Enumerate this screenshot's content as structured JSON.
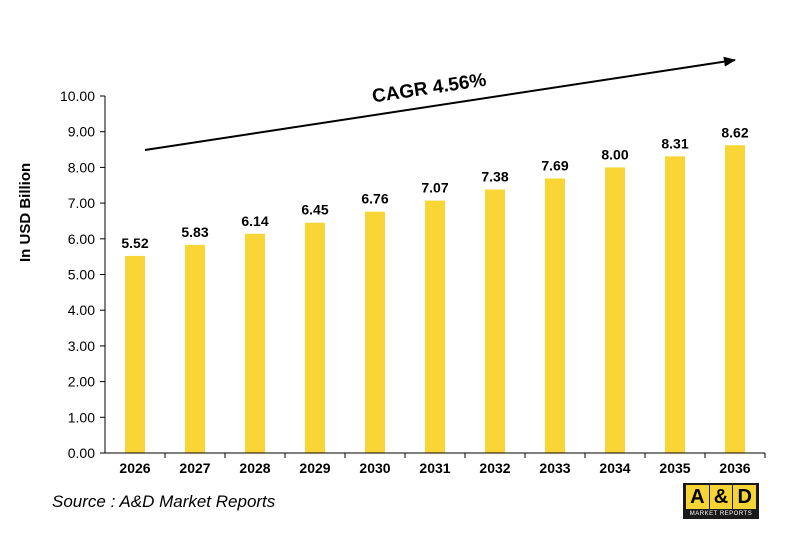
{
  "chart_data": {
    "type": "bar",
    "categories": [
      "2026",
      "2027",
      "2028",
      "2029",
      "2030",
      "2031",
      "2032",
      "2033",
      "2034",
      "2035",
      "2036"
    ],
    "values": [
      5.52,
      5.83,
      6.14,
      6.45,
      6.76,
      7.07,
      7.38,
      7.69,
      8.0,
      8.31,
      8.62
    ],
    "value_labels": [
      "5.52",
      "5.83",
      "6.14",
      "6.45",
      "6.76",
      "7.07",
      "7.38",
      "7.69",
      "8.00",
      "8.31",
      "8.62"
    ],
    "ylabel": "In USD Billion",
    "ylim": [
      0,
      10
    ],
    "yticks": [
      "0.00",
      "1.00",
      "2.00",
      "3.00",
      "4.00",
      "5.00",
      "6.00",
      "7.00",
      "8.00",
      "9.00",
      "10.00"
    ],
    "grid": false,
    "bar_color": "#f9d535",
    "annotation": "CAGR 4.56%"
  },
  "source": "Source : A&D Market Reports",
  "logo": {
    "letters": [
      "A",
      "&",
      "D"
    ],
    "subtitle": "MARKET REPORTS",
    "accent_color": "#f7d436"
  }
}
